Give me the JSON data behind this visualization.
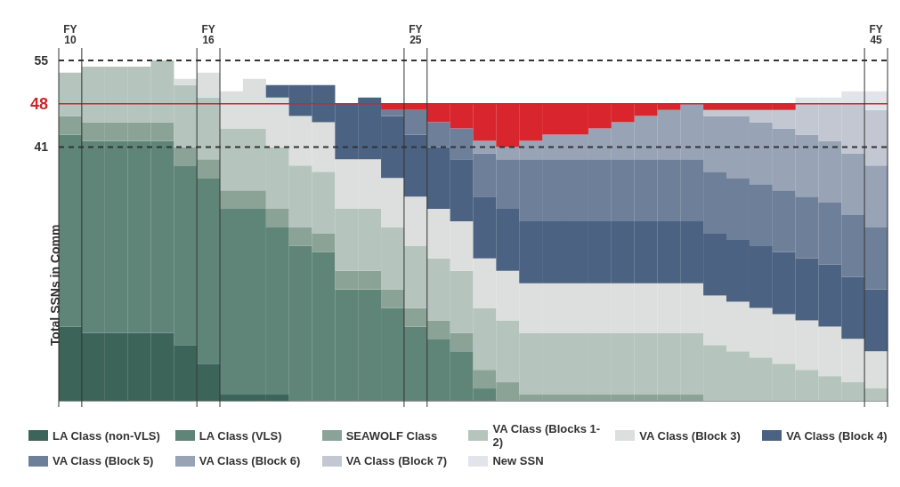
{
  "chart_data": {
    "type": "bar",
    "stacked": true,
    "ylabel": "Total SSNs in Comm",
    "categories": [
      "FY 10",
      null,
      null,
      null,
      null,
      null,
      "FY 16",
      null,
      null,
      null,
      null,
      null,
      null,
      null,
      null,
      "FY 25",
      null,
      null,
      null,
      null,
      null,
      null,
      null,
      null,
      null,
      null,
      null,
      null,
      null,
      null,
      null,
      null,
      null,
      null,
      null,
      "FY 45"
    ],
    "series": [
      {
        "name": "LA Class (non-VLS)",
        "color": "#3d6458",
        "values": [
          12,
          11,
          11,
          11,
          11,
          9,
          6,
          1,
          1,
          1,
          0,
          0,
          0,
          0,
          0,
          0,
          0,
          0,
          0,
          0,
          0,
          0,
          0,
          0,
          0,
          0,
          0,
          0,
          0,
          0,
          0,
          0,
          0,
          0,
          0,
          0
        ]
      },
      {
        "name": "LA Class (VLS)",
        "color": "#5f8579",
        "values": [
          31,
          31,
          31,
          31,
          31,
          29,
          30,
          30,
          30,
          27,
          25,
          24,
          18,
          18,
          15,
          12,
          10,
          8,
          2,
          0,
          0,
          0,
          0,
          0,
          0,
          0,
          0,
          0,
          0,
          0,
          0,
          0,
          0,
          0,
          0,
          0
        ]
      },
      {
        "name": "SEAWOLF Class",
        "color": "#8ba397",
        "values": [
          3,
          3,
          3,
          3,
          3,
          3,
          3,
          3,
          3,
          3,
          3,
          3,
          3,
          3,
          3,
          3,
          3,
          3,
          3,
          3,
          1,
          1,
          1,
          1,
          1,
          1,
          1,
          1,
          0,
          0,
          0,
          0,
          0,
          0,
          0,
          0
        ]
      },
      {
        "name": "VA Class (Blocks 1-2)",
        "color": "#b5c4bd",
        "values": [
          7,
          9,
          9,
          9,
          10,
          10,
          10,
          10,
          10,
          10,
          10,
          10,
          10,
          10,
          10,
          10,
          10,
          10,
          10,
          10,
          10,
          10,
          10,
          10,
          10,
          10,
          10,
          10,
          9,
          8,
          7,
          6,
          5,
          4,
          3,
          2
        ]
      },
      {
        "name": "VA Class (Block 3)",
        "color": "#dcdfde",
        "values": [
          0,
          0,
          0,
          0,
          0,
          1,
          4,
          6,
          8,
          8,
          8,
          8,
          8,
          8,
          8,
          8,
          8,
          8,
          8,
          8,
          8,
          8,
          8,
          8,
          8,
          8,
          8,
          8,
          8,
          8,
          8,
          8,
          8,
          8,
          7,
          6
        ]
      },
      {
        "name": "VA Class (Block 4)",
        "color": "#4b6282",
        "values": [
          0,
          0,
          0,
          0,
          0,
          0,
          0,
          0,
          0,
          2,
          5,
          6,
          9,
          10,
          10,
          10,
          10,
          10,
          10,
          10,
          10,
          10,
          10,
          10,
          10,
          10,
          10,
          10,
          10,
          10,
          10,
          10,
          10,
          10,
          10,
          10
        ]
      },
      {
        "name": "VA Class (Block 5)",
        "color": "#6e7f99",
        "values": [
          0,
          0,
          0,
          0,
          0,
          0,
          0,
          0,
          0,
          0,
          0,
          0,
          0,
          0,
          1,
          4,
          4,
          5,
          7,
          8,
          10,
          10,
          10,
          10,
          10,
          10,
          10,
          10,
          10,
          10,
          10,
          10,
          10,
          10,
          10,
          10
        ]
      },
      {
        "name": "VA Class (Block 6)",
        "color": "#98a3b6",
        "values": [
          0,
          0,
          0,
          0,
          0,
          0,
          0,
          0,
          0,
          0,
          0,
          0,
          0,
          0,
          0,
          0,
          0,
          0,
          2,
          2,
          3,
          4,
          4,
          5,
          6,
          7,
          8,
          9,
          9,
          10,
          10,
          10,
          10,
          10,
          10,
          10
        ]
      },
      {
        "name": "VA Class (Block 7)",
        "color": "#c2c7d2",
        "values": [
          0,
          0,
          0,
          0,
          0,
          0,
          0,
          0,
          0,
          0,
          0,
          0,
          0,
          0,
          0,
          0,
          0,
          0,
          0,
          0,
          0,
          0,
          0,
          0,
          0,
          0,
          0,
          0,
          1,
          1,
          2,
          3,
          5,
          6,
          8,
          9
        ]
      },
      {
        "name": "New SSN",
        "color": "#e2e4ea",
        "values": [
          0,
          0,
          0,
          0,
          0,
          0,
          0,
          0,
          0,
          0,
          0,
          0,
          0,
          0,
          0,
          0,
          0,
          0,
          0,
          0,
          0,
          0,
          0,
          0,
          0,
          0,
          0,
          0,
          0,
          0,
          0,
          0,
          1,
          1,
          2,
          3
        ]
      },
      {
        "color": "#d9262e",
        "values": [
          0,
          0,
          0,
          0,
          0,
          0,
          0,
          0,
          0,
          0,
          0,
          0,
          0,
          0,
          1,
          1,
          3,
          4,
          6,
          7,
          6,
          5,
          5,
          4,
          3,
          2,
          1,
          0,
          1,
          1,
          1,
          1,
          0,
          0,
          0,
          0
        ]
      }
    ],
    "ylim": [
      0,
      57
    ],
    "yticks": [
      41,
      48,
      55
    ],
    "ref_lines": [
      {
        "axis": "y",
        "value": 55,
        "color": "#333333",
        "line_style": "dashed"
      },
      {
        "axis": "y",
        "value": 48,
        "color": "#c8282e",
        "line_style": "solid"
      },
      {
        "axis": "y",
        "value": 41,
        "color": "#333333",
        "line_style": "dashed"
      }
    ],
    "grid": false,
    "legend": "bottom"
  }
}
